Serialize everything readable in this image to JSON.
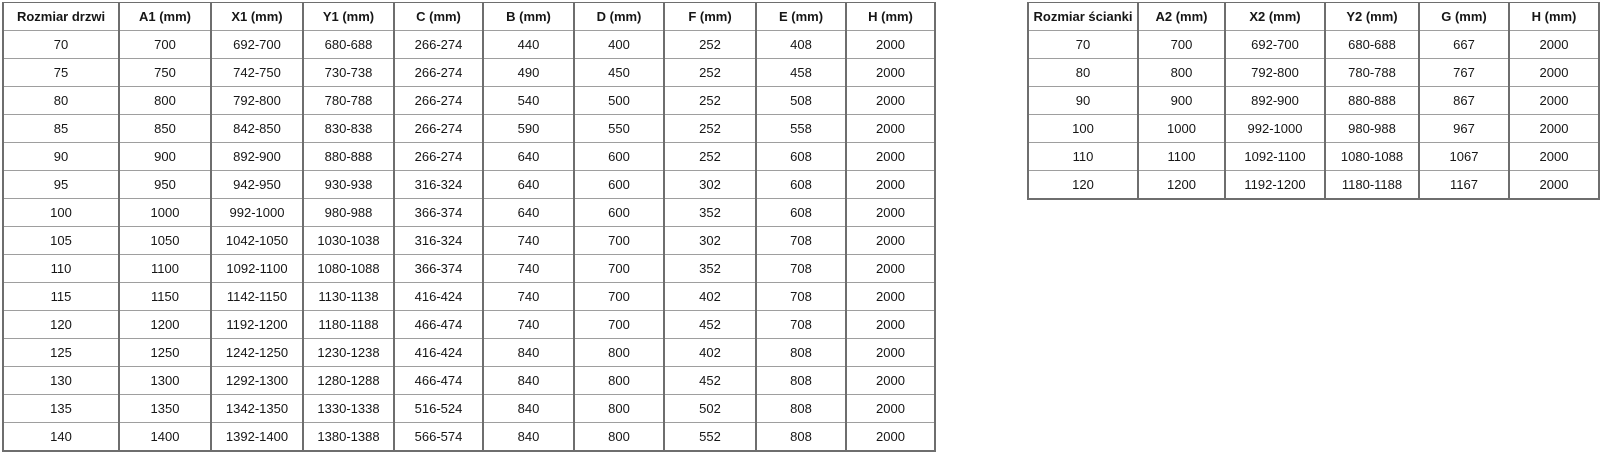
{
  "tables": [
    {
      "name": "door-sizes",
      "headers": [
        "Rozmiar drzwi",
        "A1 (mm)",
        "X1 (mm)",
        "Y1 (mm)",
        "C (mm)",
        "B (mm)",
        "D (mm)",
        "F (mm)",
        "E (mm)",
        "H (mm)"
      ],
      "rows": [
        [
          "70",
          "700",
          "692-700",
          "680-688",
          "266-274",
          "440",
          "400",
          "252",
          "408",
          "2000"
        ],
        [
          "75",
          "750",
          "742-750",
          "730-738",
          "266-274",
          "490",
          "450",
          "252",
          "458",
          "2000"
        ],
        [
          "80",
          "800",
          "792-800",
          "780-788",
          "266-274",
          "540",
          "500",
          "252",
          "508",
          "2000"
        ],
        [
          "85",
          "850",
          "842-850",
          "830-838",
          "266-274",
          "590",
          "550",
          "252",
          "558",
          "2000"
        ],
        [
          "90",
          "900",
          "892-900",
          "880-888",
          "266-274",
          "640",
          "600",
          "252",
          "608",
          "2000"
        ],
        [
          "95",
          "950",
          "942-950",
          "930-938",
          "316-324",
          "640",
          "600",
          "302",
          "608",
          "2000"
        ],
        [
          "100",
          "1000",
          "992-1000",
          "980-988",
          "366-374",
          "640",
          "600",
          "352",
          "608",
          "2000"
        ],
        [
          "105",
          "1050",
          "1042-1050",
          "1030-1038",
          "316-324",
          "740",
          "700",
          "302",
          "708",
          "2000"
        ],
        [
          "110",
          "1100",
          "1092-1100",
          "1080-1088",
          "366-374",
          "740",
          "700",
          "352",
          "708",
          "2000"
        ],
        [
          "115",
          "1150",
          "1142-1150",
          "1130-1138",
          "416-424",
          "740",
          "700",
          "402",
          "708",
          "2000"
        ],
        [
          "120",
          "1200",
          "1192-1200",
          "1180-1188",
          "466-474",
          "740",
          "700",
          "452",
          "708",
          "2000"
        ],
        [
          "125",
          "1250",
          "1242-1250",
          "1230-1238",
          "416-424",
          "840",
          "800",
          "402",
          "808",
          "2000"
        ],
        [
          "130",
          "1300",
          "1292-1300",
          "1280-1288",
          "466-474",
          "840",
          "800",
          "452",
          "808",
          "2000"
        ],
        [
          "135",
          "1350",
          "1342-1350",
          "1330-1338",
          "516-524",
          "840",
          "800",
          "502",
          "808",
          "2000"
        ],
        [
          "140",
          "1400",
          "1392-1400",
          "1380-1388",
          "566-574",
          "840",
          "800",
          "552",
          "808",
          "2000"
        ]
      ]
    },
    {
      "name": "wall-sizes",
      "headers": [
        "Rozmiar ścianki",
        "A2 (mm)",
        "X2 (mm)",
        "Y2 (mm)",
        "G (mm)",
        "H (mm)"
      ],
      "rows": [
        [
          "70",
          "700",
          "692-700",
          "680-688",
          "667",
          "2000"
        ],
        [
          "80",
          "800",
          "792-800",
          "780-788",
          "767",
          "2000"
        ],
        [
          "90",
          "900",
          "892-900",
          "880-888",
          "867",
          "2000"
        ],
        [
          "100",
          "1000",
          "992-1000",
          "980-988",
          "967",
          "2000"
        ],
        [
          "110",
          "1100",
          "1092-1100",
          "1080-1088",
          "1067",
          "2000"
        ],
        [
          "120",
          "1200",
          "1192-1200",
          "1180-1188",
          "1167",
          "2000"
        ]
      ]
    }
  ]
}
